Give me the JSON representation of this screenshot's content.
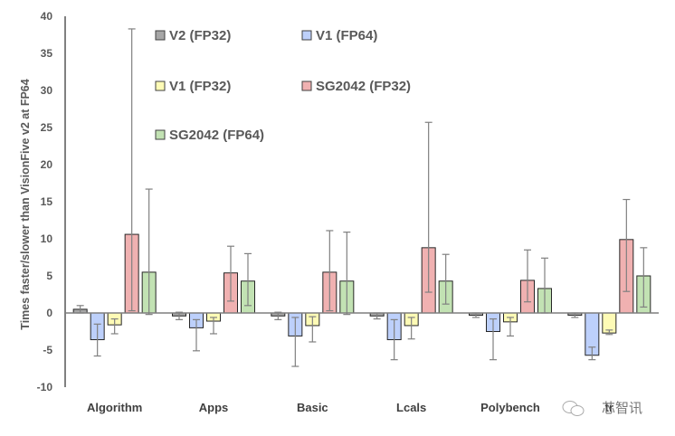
{
  "chart_data": {
    "type": "bar",
    "title": "",
    "xlabel": "",
    "ylabel": "Times faster/slower than  VisionFive v2 at FP64",
    "ylim": [
      -10,
      40
    ],
    "yticks": [
      40,
      35,
      30,
      25,
      20,
      15,
      10,
      5,
      0,
      -5,
      -10
    ],
    "grid": false,
    "legend_position": "top-left-inside",
    "categories": [
      "Algorithm",
      "Apps",
      "Basic",
      "Lcals",
      "Polybench",
      "tr"
    ],
    "series": [
      {
        "name": "V2 (FP32)",
        "color": "#a6a6a6",
        "values": [
          0.5,
          -0.4,
          -0.4,
          -0.4,
          -0.3,
          -0.3
        ],
        "err_low": [
          0.0,
          -0.9,
          -0.9,
          -0.8,
          -0.6,
          -0.6
        ],
        "err_high": [
          1.0,
          0.1,
          0.1,
          0.0,
          0.0,
          0.0
        ]
      },
      {
        "name": "V1 (FP64)",
        "color": "#bdd0fb",
        "values": [
          -3.6,
          -2.0,
          -3.1,
          -3.6,
          -2.5,
          -5.7
        ],
        "err_low": [
          -5.8,
          -5.1,
          -7.2,
          -6.3,
          -6.3,
          -6.3
        ],
        "err_high": [
          -1.5,
          -0.9,
          -0.6,
          -0.9,
          -0.8,
          -4.6
        ]
      },
      {
        "name": "V1 (FP32)",
        "color": "#fefbb6",
        "values": [
          -1.6,
          -1.1,
          -1.7,
          -1.7,
          -1.2,
          -2.7
        ],
        "err_low": [
          -2.8,
          -2.8,
          -3.9,
          -3.5,
          -3.1,
          -2.9
        ],
        "err_high": [
          -0.8,
          -0.6,
          -0.5,
          -0.6,
          -0.6,
          -2.3
        ]
      },
      {
        "name": "SG2042 (FP32)",
        "color": "#f0b1b1",
        "values": [
          10.6,
          5.4,
          5.5,
          8.8,
          4.4,
          9.9
        ],
        "err_low": [
          0.3,
          1.6,
          0.3,
          2.8,
          1.5,
          2.9
        ],
        "err_high": [
          38.3,
          9.0,
          11.1,
          25.7,
          8.5,
          15.3
        ]
      },
      {
        "name": "SG2042 (FP64)",
        "color": "#c2e2b3",
        "values": [
          5.5,
          4.3,
          4.3,
          4.3,
          3.3,
          5.0
        ],
        "err_low": [
          -0.2,
          1.0,
          -0.2,
          1.2,
          0.0,
          0.8
        ],
        "err_high": [
          16.7,
          8.0,
          10.9,
          7.9,
          7.4,
          8.8
        ]
      }
    ]
  },
  "watermark": "芯智讯"
}
